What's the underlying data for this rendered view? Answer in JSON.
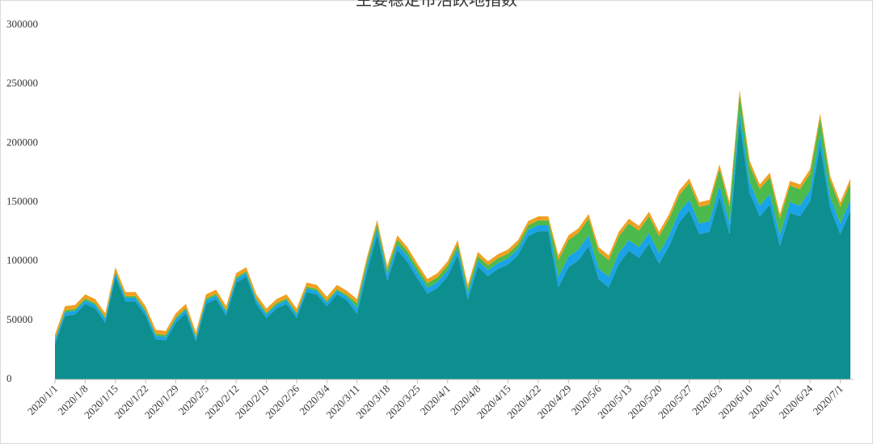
{
  "chart_data": {
    "type": "stacked_area",
    "title": "主要稳定币活跃地指数",
    "categories": [
      "2020/1/1",
      null,
      null,
      "2020/1/8",
      null,
      null,
      "2020/1/15",
      null,
      null,
      "2020/1/22",
      null,
      null,
      "2020/1/29",
      null,
      null,
      "2020/2/5",
      null,
      null,
      "2020/2/12",
      null,
      null,
      "2020/2/19",
      null,
      null,
      "2020/2/26",
      null,
      null,
      "2020/3/4",
      null,
      null,
      "2020/3/11",
      null,
      null,
      "2020/3/18",
      null,
      null,
      "2020/3/25",
      null,
      null,
      "2020/4/1",
      null,
      null,
      "2020/4/8",
      null,
      null,
      "2020/4/15",
      null,
      null,
      "2020/4/22",
      null,
      null,
      "2020/4/29",
      null,
      null,
      "2020/5/6",
      null,
      null,
      "2020/5/13",
      null,
      null,
      "2020/5/20",
      null,
      null,
      "2020/5/27",
      null,
      null,
      "2020/6/3",
      null,
      null,
      "2020/6/10",
      null,
      null,
      "2020/6/17",
      null,
      null,
      "2020/6/24",
      null,
      null,
      "2020/7/1",
      null
    ],
    "series": [
      {
        "color": "#0e8f8f",
        "values": [
          30000,
          54000,
          55000,
          64000,
          60000,
          48000,
          87000,
          66000,
          66000,
          54000,
          34000,
          33000,
          48000,
          56000,
          32000,
          64000,
          68000,
          54000,
          82000,
          87000,
          64000,
          52000,
          60000,
          64000,
          52000,
          74000,
          72000,
          62000,
          72000,
          67000,
          55500,
          91500,
          122500,
          83500,
          109500,
          99500,
          85500,
          72500,
          77500,
          87500,
          105500,
          67500,
          95500,
          87500,
          93500,
          97500,
          105500,
          121500,
          125500,
          125500,
          78000,
          95000,
          101000,
          113000,
          85000,
          78000,
          98000,
          109000,
          103000,
          115000,
          98000,
          113000,
          133000,
          143000,
          123000,
          125000,
          155000,
          123000,
          218000,
          158000,
          138000,
          148000,
          113000,
          141000,
          138000,
          151000,
          198000,
          145000,
          123000,
          143000
        ]
      },
      {
        "color": "#1aa3e8",
        "values": [
          3000,
          3000,
          3000,
          3000,
          3000,
          3000,
          3000,
          3000,
          3000,
          3000,
          3000,
          3000,
          3000,
          3000,
          3000,
          3000,
          3000,
          3000,
          3000,
          3000,
          3000,
          3000,
          3000,
          3000,
          3000,
          3000,
          3000,
          3000,
          3000,
          3000,
          5000,
          5000,
          5000,
          5000,
          5000,
          5000,
          5000,
          5000,
          5000,
          5000,
          5000,
          5000,
          5000,
          5000,
          5000,
          5000,
          5000,
          5000,
          5000,
          5000,
          9000,
          9000,
          9000,
          9000,
          9000,
          9000,
          9000,
          9000,
          9000,
          9000,
          9000,
          9000,
          9000,
          9000,
          9000,
          9000,
          9000,
          9000,
          9000,
          9000,
          9000,
          9000,
          9000,
          9000,
          9000,
          9000,
          9000,
          9000,
          9000,
          9000
        ]
      },
      {
        "color": "#4cba4c",
        "values": [
          1500,
          1500,
          1500,
          1500,
          1500,
          1500,
          1500,
          1500,
          1500,
          1500,
          1500,
          1500,
          1500,
          1500,
          1500,
          1500,
          1500,
          1500,
          1500,
          1500,
          1500,
          1500,
          1500,
          1500,
          1500,
          1500,
          1500,
          1500,
          1500,
          1500,
          4000,
          4000,
          4000,
          4000,
          4000,
          4000,
          4000,
          4000,
          4000,
          4000,
          4000,
          4000,
          4000,
          4000,
          4000,
          4000,
          4000,
          4000,
          4000,
          4000,
          14000,
          14000,
          14000,
          14000,
          14000,
          14000,
          14000,
          14000,
          14000,
          14000,
          14000,
          14000,
          14000,
          14000,
          14000,
          14000,
          14000,
          14000,
          14000,
          14000,
          14000,
          14000,
          14000,
          14000,
          14000,
          14000,
          14000,
          14000,
          14000,
          14000
        ]
      },
      {
        "color": "#f0a020",
        "values": [
          3500,
          3500,
          3500,
          3500,
          3500,
          3500,
          3500,
          3500,
          3500,
          3500,
          3500,
          3500,
          3500,
          3500,
          3500,
          3500,
          3500,
          3500,
          3500,
          3500,
          3500,
          3500,
          3500,
          3500,
          3500,
          3500,
          3500,
          3500,
          3500,
          3500,
          3500,
          3500,
          3500,
          3500,
          3500,
          3500,
          3500,
          3500,
          3500,
          3500,
          3500,
          3500,
          3500,
          3500,
          3500,
          3500,
          3500,
          3500,
          3500,
          3500,
          4000,
          4000,
          4000,
          4000,
          4000,
          4000,
          4000,
          4000,
          4000,
          4000,
          4000,
          4000,
          4000,
          4000,
          4000,
          4000,
          4000,
          4000,
          4000,
          4000,
          4000,
          4000,
          4000,
          4000,
          4000,
          4000,
          4000,
          4000,
          4000,
          4000
        ]
      }
    ],
    "ylim": [
      0,
      300000
    ],
    "yticks": [
      0,
      50000,
      100000,
      150000,
      200000,
      250000,
      300000
    ],
    "grid": false
  }
}
